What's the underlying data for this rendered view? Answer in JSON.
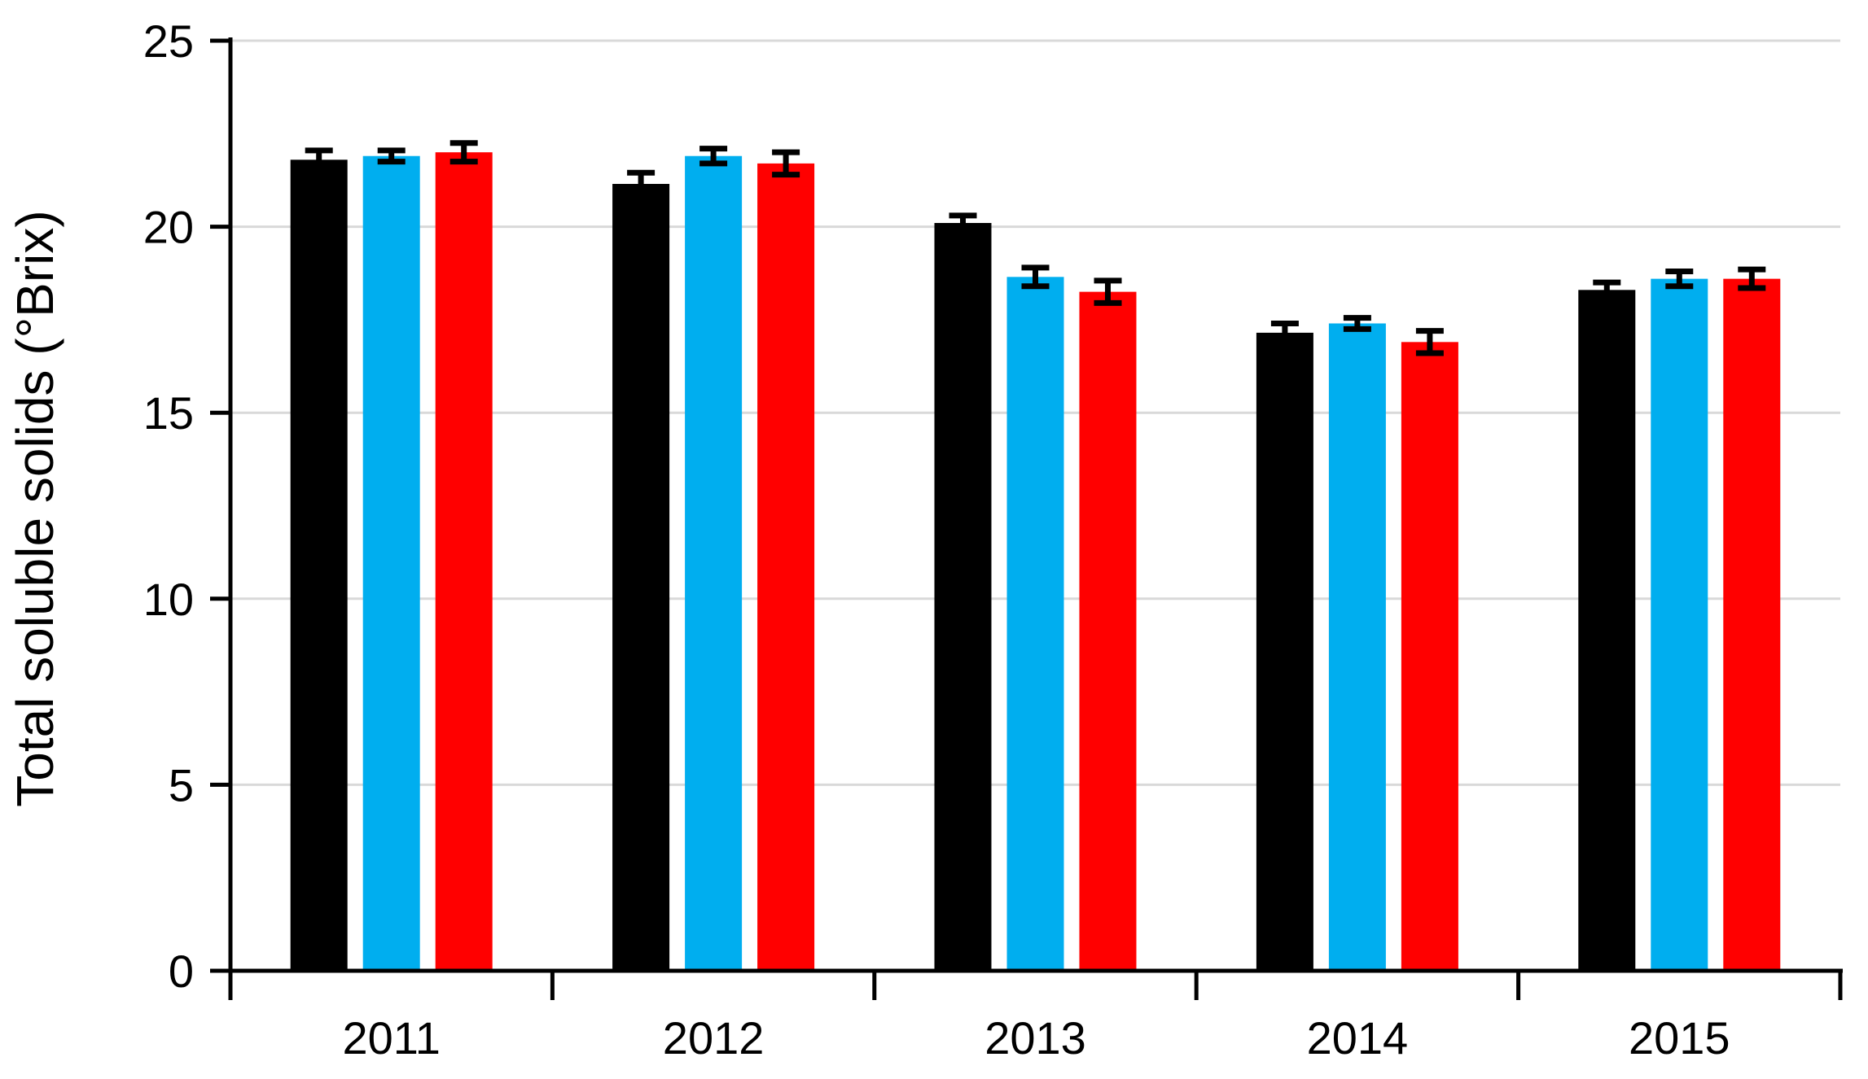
{
  "chart_data": {
    "type": "bar",
    "title": "",
    "xlabel": "",
    "ylabel": "Total soluble solids (°Brix)",
    "categories": [
      "2011",
      "2012",
      "2013",
      "2014",
      "2015"
    ],
    "series": [
      {
        "name": "black",
        "color": "#000000",
        "values": [
          21.8,
          21.15,
          20.1,
          17.15,
          18.3
        ],
        "errors": [
          0.25,
          0.3,
          0.2,
          0.25,
          0.2
        ]
      },
      {
        "name": "blue",
        "color": "#00AEEF",
        "values": [
          21.9,
          21.9,
          18.65,
          17.4,
          18.6
        ],
        "errors": [
          0.15,
          0.2,
          0.25,
          0.15,
          0.2
        ]
      },
      {
        "name": "red",
        "color": "#FF0000",
        "values": [
          22.0,
          21.7,
          18.25,
          16.9,
          18.6
        ],
        "errors": [
          0.25,
          0.3,
          0.3,
          0.3,
          0.25
        ]
      }
    ],
    "ylim": [
      0,
      25
    ],
    "yticks": [
      0,
      5,
      10,
      15,
      20,
      25
    ],
    "grid": true,
    "legend_position": "none"
  },
  "style": {
    "background_color": "#ffffff",
    "grid_color": "#D9D9D9",
    "axis_color": "#000000",
    "text_color": "#000000",
    "error_bar_color": "#000000"
  }
}
